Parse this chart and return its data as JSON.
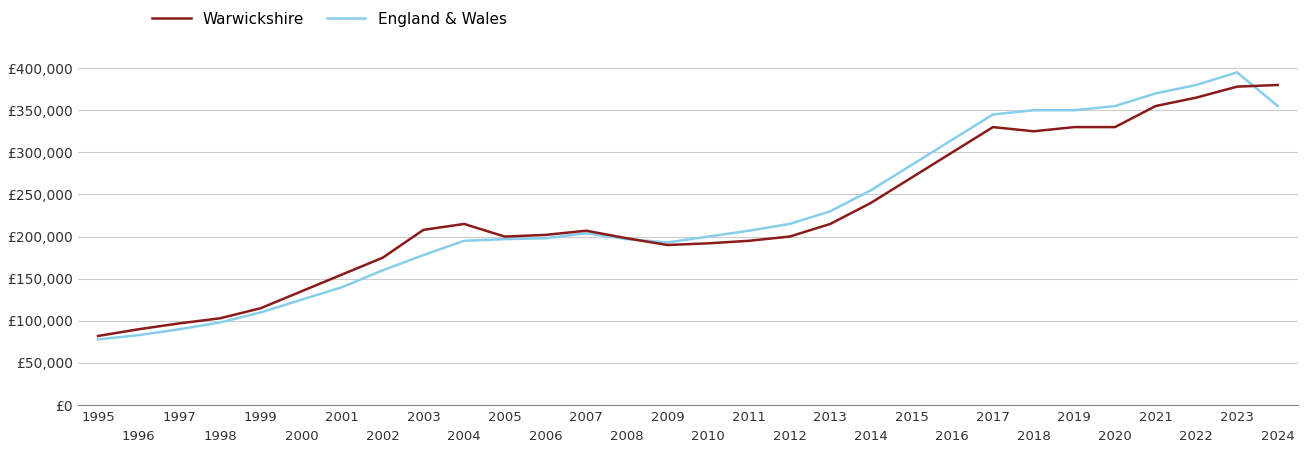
{
  "warwickshire": {
    "years": [
      1995,
      1996,
      1997,
      1998,
      1999,
      2000,
      2001,
      2002,
      2003,
      2004,
      2005,
      2006,
      2007,
      2008,
      2009,
      2010,
      2011,
      2012,
      2013,
      2014,
      2015,
      2016,
      2017,
      2018,
      2019,
      2020,
      2021,
      2022,
      2023,
      2024
    ],
    "values": [
      82000,
      90000,
      97000,
      103000,
      115000,
      135000,
      155000,
      175000,
      208000,
      215000,
      200000,
      202000,
      207000,
      198000,
      190000,
      192000,
      195000,
      200000,
      215000,
      240000,
      270000,
      300000,
      330000,
      325000,
      330000,
      330000,
      355000,
      365000,
      378000,
      380000
    ]
  },
  "england_wales": {
    "years": [
      1995,
      1996,
      1997,
      1998,
      1999,
      2000,
      2001,
      2002,
      2003,
      2004,
      2005,
      2006,
      2007,
      2008,
      2009,
      2010,
      2011,
      2012,
      2013,
      2014,
      2015,
      2016,
      2017,
      2018,
      2019,
      2020,
      2021,
      2022,
      2023,
      2024
    ],
    "values": [
      78000,
      83000,
      90000,
      98000,
      110000,
      125000,
      140000,
      160000,
      178000,
      195000,
      197000,
      198000,
      204000,
      197000,
      193000,
      200000,
      207000,
      215000,
      230000,
      255000,
      285000,
      315000,
      345000,
      350000,
      350000,
      355000,
      370000,
      380000,
      395000,
      355000
    ]
  },
  "warwickshire_color": "#8B1A1A",
  "england_wales_color": "#87CEEB",
  "warwickshire_label": "Warwickshire",
  "england_wales_label": "England & Wales",
  "ylim": [
    0,
    420000
  ],
  "yticks": [
    0,
    50000,
    100000,
    150000,
    200000,
    250000,
    300000,
    350000,
    400000
  ],
  "ytick_labels": [
    "£0",
    "£50,000",
    "£100,000",
    "£150,000",
    "£200,000",
    "£250,000",
    "£300,000",
    "£350,000",
    "£400,000"
  ],
  "xticks_top": [
    1995,
    1997,
    1999,
    2001,
    2003,
    2005,
    2007,
    2009,
    2011,
    2013,
    2015,
    2017,
    2019,
    2021,
    2023
  ],
  "xticks_bottom": [
    1996,
    1998,
    2000,
    2002,
    2004,
    2006,
    2008,
    2010,
    2012,
    2014,
    2016,
    2018,
    2020,
    2022,
    2024
  ],
  "background_color": "#ffffff",
  "grid_color": "#cccccc",
  "line_width": 1.8
}
